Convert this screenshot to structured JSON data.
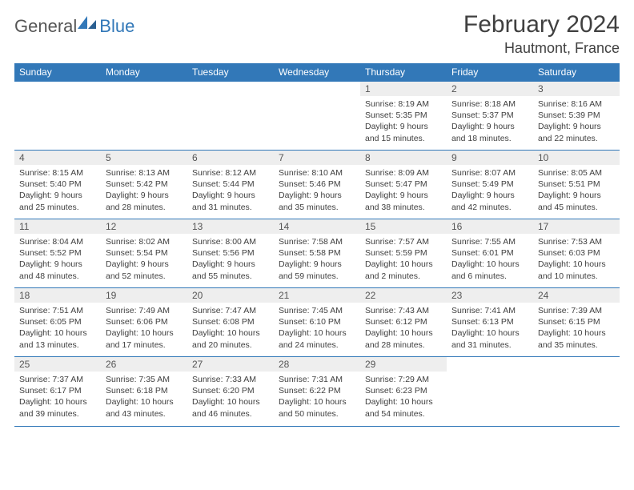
{
  "logo": {
    "text1": "General",
    "text2": "Blue"
  },
  "title": "February 2024",
  "location": "Hautmont, France",
  "colors": {
    "accent": "#3278b8",
    "header_bg": "#3278b8",
    "day_bg": "#eeeeee",
    "text": "#404040"
  },
  "day_headers": [
    "Sunday",
    "Monday",
    "Tuesday",
    "Wednesday",
    "Thursday",
    "Friday",
    "Saturday"
  ],
  "weeks": [
    [
      null,
      null,
      null,
      null,
      {
        "n": "1",
        "sr": "Sunrise: 8:19 AM",
        "ss": "Sunset: 5:35 PM",
        "dl1": "Daylight: 9 hours",
        "dl2": "and 15 minutes."
      },
      {
        "n": "2",
        "sr": "Sunrise: 8:18 AM",
        "ss": "Sunset: 5:37 PM",
        "dl1": "Daylight: 9 hours",
        "dl2": "and 18 minutes."
      },
      {
        "n": "3",
        "sr": "Sunrise: 8:16 AM",
        "ss": "Sunset: 5:39 PM",
        "dl1": "Daylight: 9 hours",
        "dl2": "and 22 minutes."
      }
    ],
    [
      {
        "n": "4",
        "sr": "Sunrise: 8:15 AM",
        "ss": "Sunset: 5:40 PM",
        "dl1": "Daylight: 9 hours",
        "dl2": "and 25 minutes."
      },
      {
        "n": "5",
        "sr": "Sunrise: 8:13 AM",
        "ss": "Sunset: 5:42 PM",
        "dl1": "Daylight: 9 hours",
        "dl2": "and 28 minutes."
      },
      {
        "n": "6",
        "sr": "Sunrise: 8:12 AM",
        "ss": "Sunset: 5:44 PM",
        "dl1": "Daylight: 9 hours",
        "dl2": "and 31 minutes."
      },
      {
        "n": "7",
        "sr": "Sunrise: 8:10 AM",
        "ss": "Sunset: 5:46 PM",
        "dl1": "Daylight: 9 hours",
        "dl2": "and 35 minutes."
      },
      {
        "n": "8",
        "sr": "Sunrise: 8:09 AM",
        "ss": "Sunset: 5:47 PM",
        "dl1": "Daylight: 9 hours",
        "dl2": "and 38 minutes."
      },
      {
        "n": "9",
        "sr": "Sunrise: 8:07 AM",
        "ss": "Sunset: 5:49 PM",
        "dl1": "Daylight: 9 hours",
        "dl2": "and 42 minutes."
      },
      {
        "n": "10",
        "sr": "Sunrise: 8:05 AM",
        "ss": "Sunset: 5:51 PM",
        "dl1": "Daylight: 9 hours",
        "dl2": "and 45 minutes."
      }
    ],
    [
      {
        "n": "11",
        "sr": "Sunrise: 8:04 AM",
        "ss": "Sunset: 5:52 PM",
        "dl1": "Daylight: 9 hours",
        "dl2": "and 48 minutes."
      },
      {
        "n": "12",
        "sr": "Sunrise: 8:02 AM",
        "ss": "Sunset: 5:54 PM",
        "dl1": "Daylight: 9 hours",
        "dl2": "and 52 minutes."
      },
      {
        "n": "13",
        "sr": "Sunrise: 8:00 AM",
        "ss": "Sunset: 5:56 PM",
        "dl1": "Daylight: 9 hours",
        "dl2": "and 55 minutes."
      },
      {
        "n": "14",
        "sr": "Sunrise: 7:58 AM",
        "ss": "Sunset: 5:58 PM",
        "dl1": "Daylight: 9 hours",
        "dl2": "and 59 minutes."
      },
      {
        "n": "15",
        "sr": "Sunrise: 7:57 AM",
        "ss": "Sunset: 5:59 PM",
        "dl1": "Daylight: 10 hours",
        "dl2": "and 2 minutes."
      },
      {
        "n": "16",
        "sr": "Sunrise: 7:55 AM",
        "ss": "Sunset: 6:01 PM",
        "dl1": "Daylight: 10 hours",
        "dl2": "and 6 minutes."
      },
      {
        "n": "17",
        "sr": "Sunrise: 7:53 AM",
        "ss": "Sunset: 6:03 PM",
        "dl1": "Daylight: 10 hours",
        "dl2": "and 10 minutes."
      }
    ],
    [
      {
        "n": "18",
        "sr": "Sunrise: 7:51 AM",
        "ss": "Sunset: 6:05 PM",
        "dl1": "Daylight: 10 hours",
        "dl2": "and 13 minutes."
      },
      {
        "n": "19",
        "sr": "Sunrise: 7:49 AM",
        "ss": "Sunset: 6:06 PM",
        "dl1": "Daylight: 10 hours",
        "dl2": "and 17 minutes."
      },
      {
        "n": "20",
        "sr": "Sunrise: 7:47 AM",
        "ss": "Sunset: 6:08 PM",
        "dl1": "Daylight: 10 hours",
        "dl2": "and 20 minutes."
      },
      {
        "n": "21",
        "sr": "Sunrise: 7:45 AM",
        "ss": "Sunset: 6:10 PM",
        "dl1": "Daylight: 10 hours",
        "dl2": "and 24 minutes."
      },
      {
        "n": "22",
        "sr": "Sunrise: 7:43 AM",
        "ss": "Sunset: 6:12 PM",
        "dl1": "Daylight: 10 hours",
        "dl2": "and 28 minutes."
      },
      {
        "n": "23",
        "sr": "Sunrise: 7:41 AM",
        "ss": "Sunset: 6:13 PM",
        "dl1": "Daylight: 10 hours",
        "dl2": "and 31 minutes."
      },
      {
        "n": "24",
        "sr": "Sunrise: 7:39 AM",
        "ss": "Sunset: 6:15 PM",
        "dl1": "Daylight: 10 hours",
        "dl2": "and 35 minutes."
      }
    ],
    [
      {
        "n": "25",
        "sr": "Sunrise: 7:37 AM",
        "ss": "Sunset: 6:17 PM",
        "dl1": "Daylight: 10 hours",
        "dl2": "and 39 minutes."
      },
      {
        "n": "26",
        "sr": "Sunrise: 7:35 AM",
        "ss": "Sunset: 6:18 PM",
        "dl1": "Daylight: 10 hours",
        "dl2": "and 43 minutes."
      },
      {
        "n": "27",
        "sr": "Sunrise: 7:33 AM",
        "ss": "Sunset: 6:20 PM",
        "dl1": "Daylight: 10 hours",
        "dl2": "and 46 minutes."
      },
      {
        "n": "28",
        "sr": "Sunrise: 7:31 AM",
        "ss": "Sunset: 6:22 PM",
        "dl1": "Daylight: 10 hours",
        "dl2": "and 50 minutes."
      },
      {
        "n": "29",
        "sr": "Sunrise: 7:29 AM",
        "ss": "Sunset: 6:23 PM",
        "dl1": "Daylight: 10 hours",
        "dl2": "and 54 minutes."
      },
      null,
      null
    ]
  ]
}
